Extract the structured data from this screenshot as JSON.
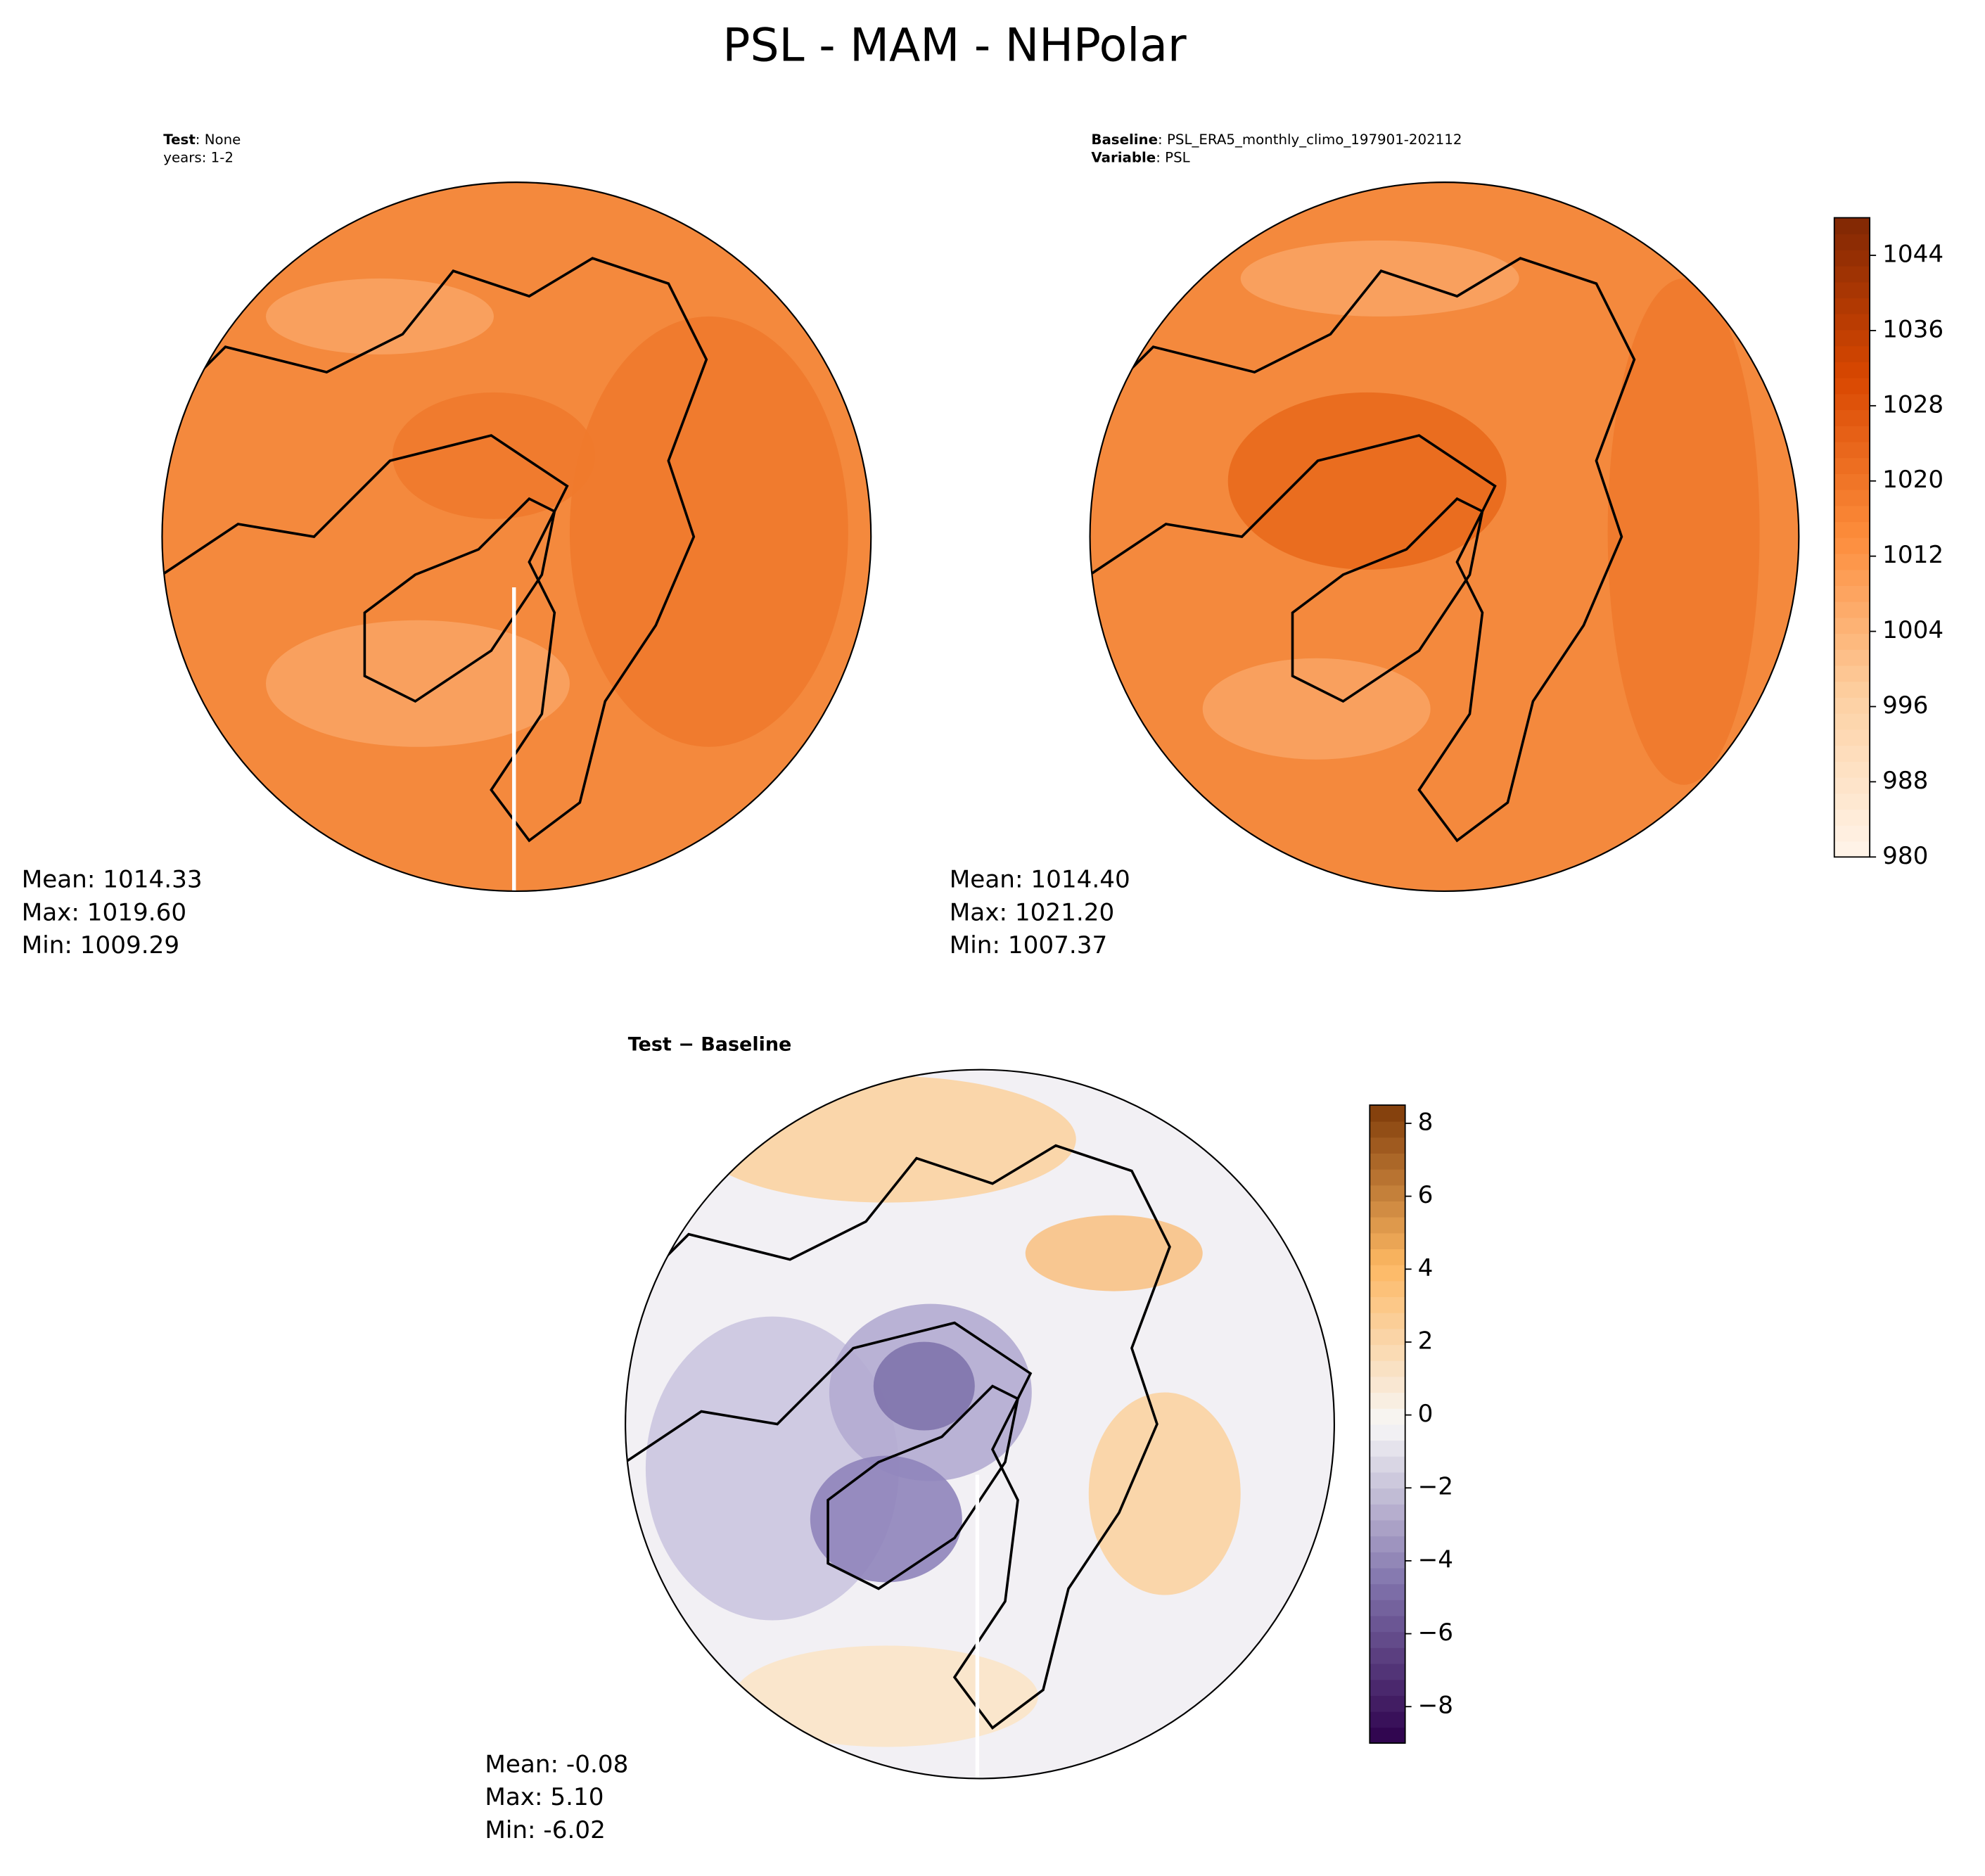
{
  "chart_data": [
    {
      "type": "map",
      "header": [
        {
          "key": "Test",
          "text": ": None"
        },
        {
          "text": "years: 1-2"
        }
      ],
      "stats": [
        "Mean: 1014.33",
        "Max: 1019.60",
        "Min: 1009.29"
      ],
      "base_color": "#f4893d"
    },
    {
      "type": "map",
      "header": [
        {
          "key": "Baseline",
          "text": ": PSL_ERA5_monthly_climo_197901-202112"
        },
        {
          "key": "Variable",
          "text": ": PSL"
        }
      ],
      "stats": [
        "Mean: 1014.40",
        "Max: 1021.20",
        "Min: 1007.37"
      ],
      "base_color": "#f4893d",
      "colorbar": {
        "lim": [
          980,
          1048
        ],
        "ticks": [
          980,
          988,
          996,
          1004,
          1012,
          1020,
          1028,
          1036,
          1044
        ],
        "cmap": [
          "#fff5eb",
          "#fdd0a2",
          "#fd8d3c",
          "#d94801",
          "#7f2704"
        ]
      }
    },
    {
      "type": "map",
      "title": "Test − Baseline",
      "stats": [
        "Mean: -0.08",
        "Max:  5.10",
        "Min: -6.02"
      ],
      "base_color": "#f2f0f4",
      "colorbar": {
        "lim": [
          -9,
          8.5
        ],
        "ticks": [
          {
            "value": -8,
            "label": "−8"
          },
          {
            "value": -6,
            "label": "−6"
          },
          {
            "value": -4,
            "label": "−4"
          },
          {
            "value": -2,
            "label": "−2"
          },
          0,
          2,
          4,
          6,
          8
        ],
        "cmap": [
          "#2d004b",
          "#8073ac",
          "#f7f7f7",
          "#fdb863",
          "#7f3b08"
        ]
      }
    }
  ],
  "title": "PSL - MAM - NHPolar"
}
